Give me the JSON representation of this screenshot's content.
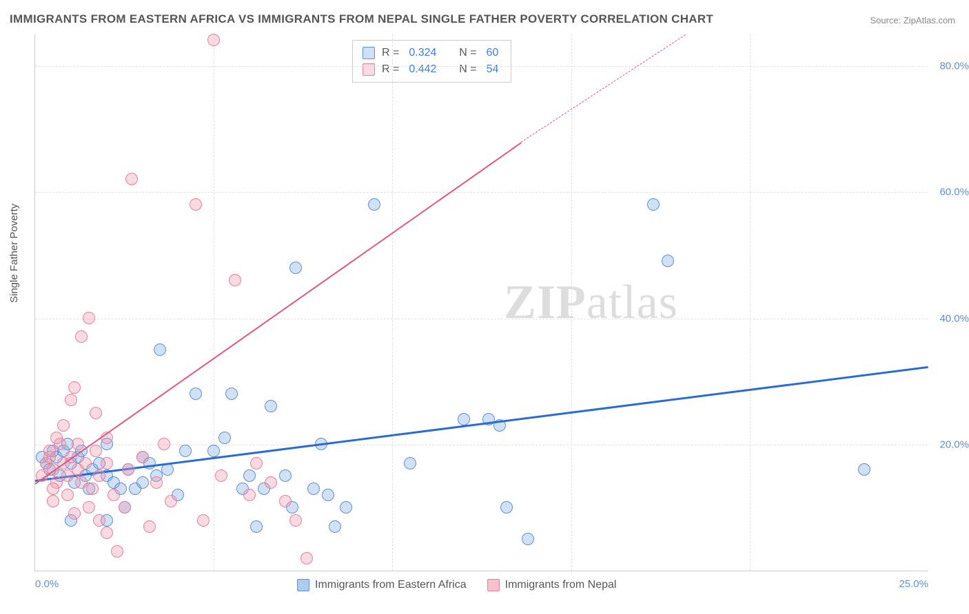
{
  "title": "IMMIGRANTS FROM EASTERN AFRICA VS IMMIGRANTS FROM NEPAL SINGLE FATHER POVERTY CORRELATION CHART",
  "source": "Source: ZipAtlas.com",
  "ylabel": "Single Father Poverty",
  "watermark_a": "ZIP",
  "watermark_b": "atlas",
  "chart": {
    "type": "scatter",
    "xlim": [
      0,
      25
    ],
    "ylim": [
      0,
      85
    ],
    "xticks": [
      0,
      5,
      10,
      15,
      20,
      25
    ],
    "xtick_labels": [
      "0.0%",
      "",
      "",
      "",
      "",
      "25.0%"
    ],
    "yticks": [
      20,
      40,
      60,
      80
    ],
    "ytick_labels": [
      "20.0%",
      "40.0%",
      "60.0%",
      "80.0%"
    ],
    "grid_color": "#e0e0e0",
    "background_color": "#ffffff",
    "axis_color": "#cccccc",
    "series": [
      {
        "name": "Immigrants from Eastern Africa",
        "color_fill": "rgba(120,170,230,0.35)",
        "color_stroke": "#5b8fd6",
        "marker_radius": 9,
        "R": "0.324",
        "N": "60",
        "trend": {
          "x1": 0,
          "y1": 14.5,
          "x2": 25,
          "y2": 32.5,
          "color": "#2b6cd4",
          "width": 2.5
        },
        "points": [
          [
            0.2,
            18
          ],
          [
            0.3,
            17
          ],
          [
            0.5,
            19
          ],
          [
            0.4,
            16
          ],
          [
            0.6,
            18
          ],
          [
            0.8,
            19
          ],
          [
            0.7,
            15
          ],
          [
            0.9,
            20
          ],
          [
            1.0,
            17
          ],
          [
            1.2,
            18
          ],
          [
            1.1,
            14
          ],
          [
            1.4,
            15
          ],
          [
            1.3,
            19
          ],
          [
            1.6,
            16
          ],
          [
            1.5,
            13
          ],
          [
            1.8,
            17
          ],
          [
            2.0,
            20
          ],
          [
            2.0,
            15
          ],
          [
            2.2,
            14
          ],
          [
            2.4,
            13
          ],
          [
            2.6,
            16
          ],
          [
            2.5,
            10
          ],
          [
            2.8,
            13
          ],
          [
            3.0,
            18
          ],
          [
            3.0,
            14
          ],
          [
            3.2,
            17
          ],
          [
            3.5,
            35
          ],
          [
            3.4,
            15
          ],
          [
            3.7,
            16
          ],
          [
            4.2,
            19
          ],
          [
            4.5,
            28
          ],
          [
            5.0,
            19
          ],
          [
            5.3,
            21
          ],
          [
            5.5,
            28
          ],
          [
            5.8,
            13
          ],
          [
            6.0,
            15
          ],
          [
            6.2,
            7
          ],
          [
            6.4,
            13
          ],
          [
            6.6,
            26
          ],
          [
            7.0,
            15
          ],
          [
            7.2,
            10
          ],
          [
            7.3,
            48
          ],
          [
            7.8,
            13
          ],
          [
            8.0,
            20
          ],
          [
            8.2,
            12
          ],
          [
            8.4,
            7
          ],
          [
            8.7,
            10
          ],
          [
            9.5,
            58
          ],
          [
            10.5,
            17
          ],
          [
            12.0,
            24
          ],
          [
            12.7,
            24
          ],
          [
            13.0,
            23
          ],
          [
            13.2,
            10
          ],
          [
            13.8,
            5
          ],
          [
            17.3,
            58
          ],
          [
            17.7,
            49
          ],
          [
            23.2,
            16
          ],
          [
            4.0,
            12
          ],
          [
            1.0,
            8
          ],
          [
            2.0,
            8
          ]
        ]
      },
      {
        "name": "Immigrants from Nepal",
        "color_fill": "rgba(240,150,170,0.35)",
        "color_stroke": "#e97ea0",
        "marker_radius": 9,
        "R": "0.442",
        "N": "54",
        "trend": {
          "x1": 0,
          "y1": 14,
          "x2": 13.6,
          "y2": 68,
          "color": "#e4567f",
          "width": 2
        },
        "trend_dashed": {
          "x1": 13.6,
          "y1": 68,
          "x2": 18.2,
          "y2": 85,
          "color": "#e4567f",
          "width": 1.5
        },
        "points": [
          [
            0.2,
            15
          ],
          [
            0.3,
            17
          ],
          [
            0.4,
            18
          ],
          [
            0.5,
            16
          ],
          [
            0.4,
            19
          ],
          [
            0.6,
            14
          ],
          [
            0.7,
            20
          ],
          [
            0.5,
            13
          ],
          [
            0.8,
            17
          ],
          [
            0.6,
            21
          ],
          [
            0.9,
            15
          ],
          [
            0.8,
            23
          ],
          [
            1.0,
            18
          ],
          [
            0.9,
            12
          ],
          [
            1.0,
            27
          ],
          [
            1.1,
            29
          ],
          [
            1.2,
            16
          ],
          [
            1.1,
            9
          ],
          [
            1.3,
            14
          ],
          [
            1.3,
            37
          ],
          [
            1.4,
            17
          ],
          [
            1.5,
            40
          ],
          [
            1.5,
            10
          ],
          [
            1.6,
            13
          ],
          [
            1.7,
            19
          ],
          [
            1.8,
            15
          ],
          [
            1.8,
            8
          ],
          [
            2.0,
            21
          ],
          [
            2.0,
            6
          ],
          [
            2.2,
            12
          ],
          [
            2.3,
            3
          ],
          [
            2.5,
            10
          ],
          [
            2.6,
            16
          ],
          [
            2.7,
            62
          ],
          [
            3.0,
            18
          ],
          [
            3.2,
            7
          ],
          [
            3.4,
            14
          ],
          [
            3.6,
            20
          ],
          [
            3.8,
            11
          ],
          [
            4.5,
            58
          ],
          [
            4.7,
            8
          ],
          [
            5.0,
            84
          ],
          [
            5.2,
            15
          ],
          [
            5.6,
            46
          ],
          [
            6.0,
            12
          ],
          [
            6.2,
            17
          ],
          [
            6.6,
            14
          ],
          [
            7.0,
            11
          ],
          [
            7.3,
            8
          ],
          [
            7.6,
            2
          ],
          [
            2.0,
            17
          ],
          [
            0.5,
            11
          ],
          [
            1.2,
            20
          ],
          [
            1.7,
            25
          ]
        ]
      }
    ]
  },
  "legend_top": {
    "r_label": "R =",
    "n_label": "N ="
  },
  "legend_bottom": [
    {
      "label": "Immigrants from Eastern Africa",
      "fill": "rgba(120,170,230,0.6)",
      "stroke": "#5b8fd6"
    },
    {
      "label": "Immigrants from Nepal",
      "fill": "rgba(240,150,170,0.6)",
      "stroke": "#e97ea0"
    }
  ]
}
